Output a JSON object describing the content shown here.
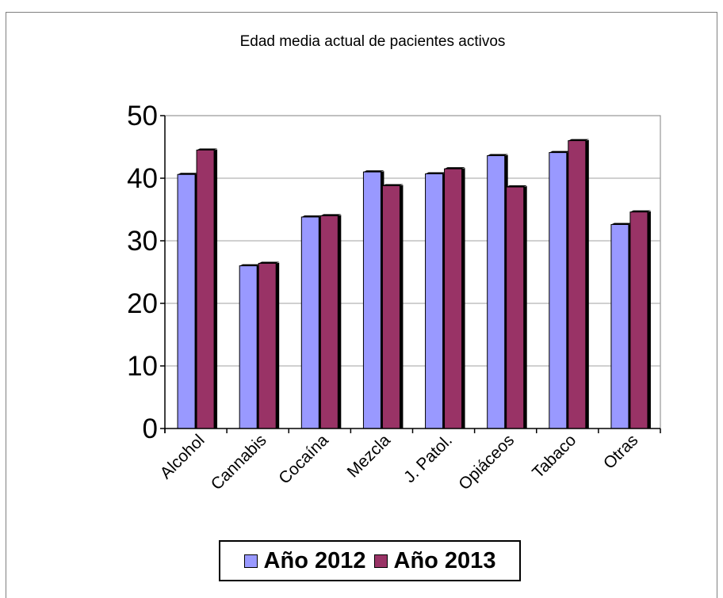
{
  "chart_data": {
    "type": "bar",
    "title": "Edad media actual de pacientes activos",
    "xlabel": "",
    "ylabel": "",
    "ylim": [
      0,
      50
    ],
    "yticks": [
      "0",
      "10",
      "20",
      "30",
      "40",
      "50"
    ],
    "categories": [
      "Alcohol",
      "Cannabis",
      "Cocaína",
      "Mezcla",
      "J. Patol.",
      "Opiáceos",
      "Tabaco",
      "Otras"
    ],
    "series": [
      {
        "name": "Año 2012",
        "color": "#9999ff",
        "values": [
          40.6,
          26.0,
          33.8,
          41.0,
          40.7,
          43.6,
          44.1,
          32.6
        ]
      },
      {
        "name": "Año 2013",
        "color": "#993366",
        "values": [
          44.5,
          26.4,
          34.0,
          38.8,
          41.5,
          38.6,
          46.0,
          34.6
        ]
      }
    ],
    "grid": true,
    "legend": "bottom"
  }
}
